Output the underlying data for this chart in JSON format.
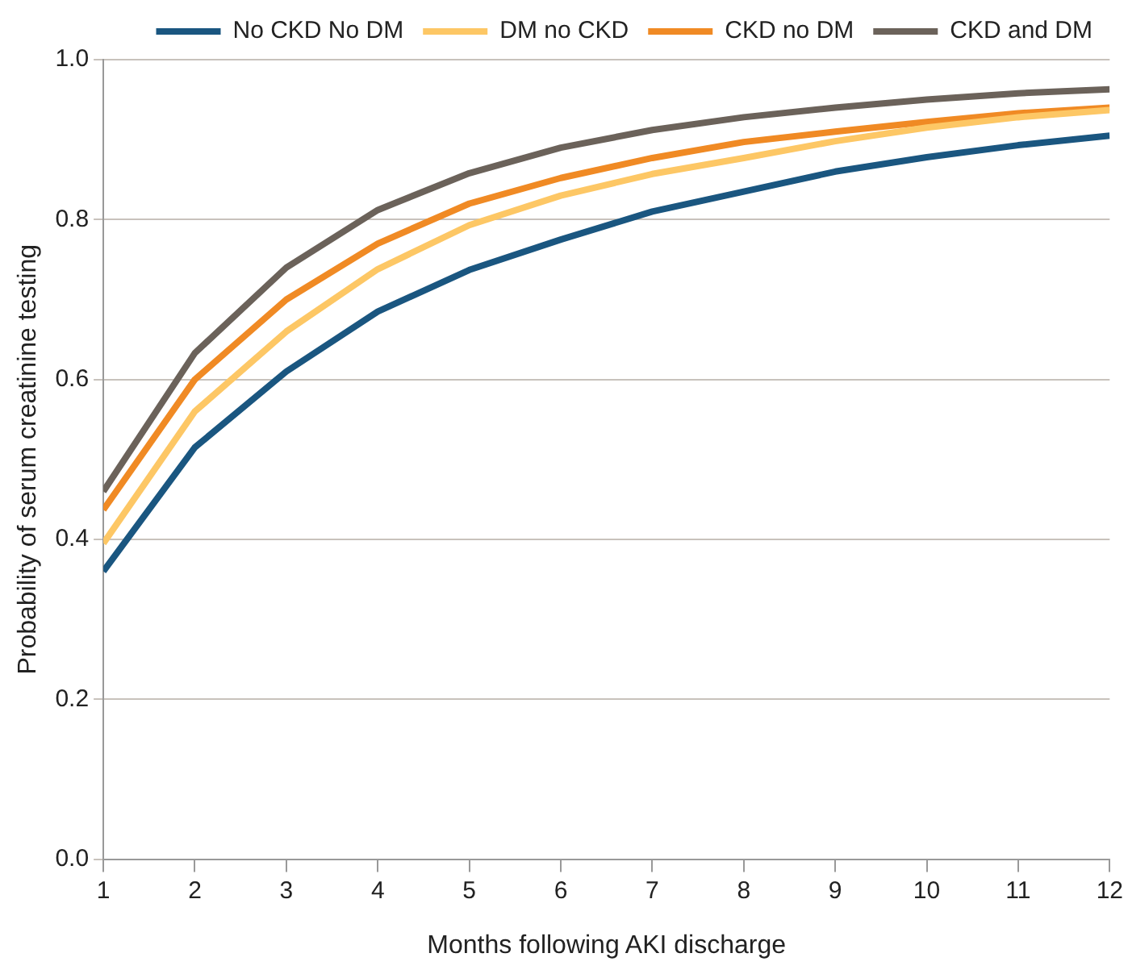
{
  "chart_data": {
    "type": "line",
    "xlabel": "Months following AKI discharge",
    "ylabel": "Probability of serum creatinine testing",
    "x": [
      1,
      2,
      3,
      4,
      5,
      6,
      7,
      8,
      9,
      10,
      11,
      12
    ],
    "xlim": [
      1,
      12
    ],
    "xticks": [
      1,
      2,
      3,
      4,
      5,
      6,
      7,
      8,
      9,
      10,
      11,
      12
    ],
    "ylim": [
      0,
      1
    ],
    "yticks": [
      {
        "value": 0,
        "label": "0.0"
      },
      {
        "value": 0.2,
        "label": "0.2"
      },
      {
        "value": 0.4,
        "label": "0.4"
      },
      {
        "value": 0.6,
        "label": "0.6"
      },
      {
        "value": 0.8,
        "label": "0.8"
      },
      {
        "value": 1,
        "label": "1.0"
      }
    ],
    "grid": "y",
    "legend": "top right",
    "marker": "none",
    "line_style": "solid",
    "series": [
      {
        "name": "No CKD No DM",
        "color": "#1a5680",
        "values": [
          0.36,
          0.515,
          0.61,
          0.685,
          0.737,
          0.775,
          0.81,
          0.835,
          0.86,
          0.878,
          0.893,
          0.905
        ]
      },
      {
        "name": "DM no CKD",
        "color": "#fdc765",
        "values": [
          0.395,
          0.56,
          0.66,
          0.738,
          0.793,
          0.83,
          0.857,
          0.877,
          0.898,
          0.915,
          0.928,
          0.937
        ]
      },
      {
        "name": "CKD no DM",
        "color": "#f08a24",
        "values": [
          0.437,
          0.6,
          0.7,
          0.77,
          0.82,
          0.852,
          0.877,
          0.897,
          0.91,
          0.922,
          0.933,
          0.94
        ]
      },
      {
        "name": "CKD and DM",
        "color": "#6b625a",
        "values": [
          0.46,
          0.633,
          0.74,
          0.812,
          0.858,
          0.89,
          0.912,
          0.928,
          0.94,
          0.95,
          0.958,
          0.963
        ]
      }
    ]
  }
}
